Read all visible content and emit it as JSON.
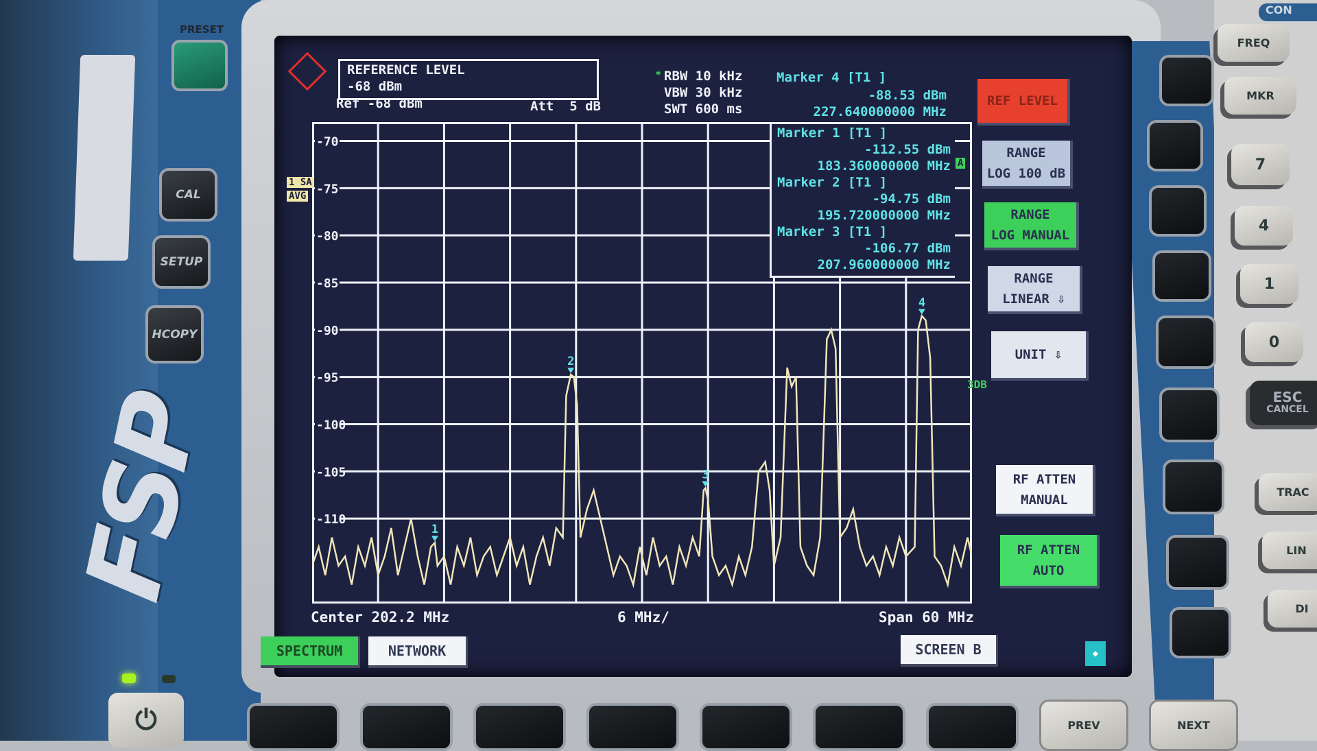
{
  "device": {
    "model_logo": "FSP",
    "preset_label": "PRESET",
    "left_keys": [
      "CAL",
      "SETUP",
      "HCOPY"
    ],
    "right_keys": [
      "FREQ",
      "MKR",
      "7",
      "4",
      "1",
      "0",
      "ESC",
      "CANCEL",
      "TRAC",
      "LIN",
      "DI"
    ],
    "right_section_label": "CON",
    "bottom_keys": [
      "PREV",
      "NEXT"
    ],
    "power_icon": "power-icon",
    "led_color": "#a8f020"
  },
  "header": {
    "entry_title": "REFERENCE LEVEL",
    "entry_value": "-68 dBm",
    "ref": "Ref -68 dBm",
    "att": "Att  5 dB",
    "rbw": "RBW 10 kHz",
    "vbw": "VBW 30 kHz",
    "swt": "SWT 600 ms",
    "rbw_flag": "*"
  },
  "markers": [
    {
      "title": "Marker 4 [T1 ]",
      "level": "-88.53 dBm",
      "freq": "227.640000000 MHz"
    },
    {
      "title": "Marker 1 [T1 ]",
      "level": "-112.55 dBm",
      "freq": "183.360000000 MHz"
    },
    {
      "title": "Marker 2 [T1 ]",
      "level": "-94.75 dBm",
      "freq": "195.720000000 MHz"
    },
    {
      "title": "Marker 3 [T1 ]",
      "level": "-106.77 dBm",
      "freq": "207.960000000 MHz"
    }
  ],
  "badges": {
    "trace": "1 SA",
    "avg": "AVG",
    "a": "A",
    "db3": "3DB"
  },
  "footer": {
    "center": "Center 202.2 MHz",
    "div": "6 MHz/",
    "span": "Span 60 MHz"
  },
  "softkeys": [
    {
      "line1": "REF LEVEL",
      "line2": "",
      "state": "active-red"
    },
    {
      "line1": "RANGE",
      "line2": "LOG 100 dB",
      "state": "normal"
    },
    {
      "line1": "RANGE",
      "line2": "LOG MANUAL",
      "state": "selected"
    },
    {
      "line1": "RANGE",
      "line2": "LINEAR ⇩",
      "state": "normal"
    },
    {
      "line1": "UNIT ⇩",
      "line2": "",
      "state": "normal"
    },
    {
      "line1": "RF ATTEN",
      "line2": "MANUAL",
      "state": "normal"
    },
    {
      "line1": "RF ATTEN",
      "line2": "AUTO",
      "state": "selected"
    }
  ],
  "tabs": {
    "spectrum": "SPECTRUM",
    "network": "NETWORK",
    "screen_b": "SCREEN B"
  },
  "colors": {
    "screen_bg": "#1d2140",
    "trace": "#f0e6b8",
    "grid": "#eef2f8",
    "marker_text": "#5fe3e6",
    "selected": "#3ccf5a",
    "ref_key": "#e8402e"
  },
  "chart_data": {
    "type": "line",
    "xlabel": "",
    "ylabel": "",
    "xlim": [
      172.2,
      232.2
    ],
    "ylim": [
      -119,
      -68
    ],
    "yticks": [
      -70,
      -75,
      -80,
      -85,
      -90,
      -95,
      -100,
      -105,
      -110
    ],
    "xgrid_step_mhz": 6,
    "grid": true,
    "marker_points": [
      {
        "label": "1",
        "x": 183.36,
        "y": -112.55
      },
      {
        "label": "2",
        "x": 195.72,
        "y": -94.75
      },
      {
        "label": "3",
        "x": 207.96,
        "y": -106.77
      },
      {
        "label": "4",
        "x": 227.64,
        "y": -88.53
      }
    ],
    "trace": [
      [
        172.2,
        -115
      ],
      [
        172.8,
        -113
      ],
      [
        173.4,
        -116
      ],
      [
        174.0,
        -112
      ],
      [
        174.6,
        -115
      ],
      [
        175.2,
        -114
      ],
      [
        175.8,
        -117
      ],
      [
        176.4,
        -113
      ],
      [
        177.0,
        -115
      ],
      [
        177.6,
        -112
      ],
      [
        178.2,
        -116
      ],
      [
        178.8,
        -114
      ],
      [
        179.4,
        -111
      ],
      [
        180.0,
        -116
      ],
      [
        180.6,
        -113
      ],
      [
        181.2,
        -110
      ],
      [
        181.8,
        -114
      ],
      [
        182.4,
        -117
      ],
      [
        183.0,
        -113
      ],
      [
        183.36,
        -112.55
      ],
      [
        183.6,
        -115
      ],
      [
        184.2,
        -114
      ],
      [
        184.8,
        -117
      ],
      [
        185.4,
        -113
      ],
      [
        186.0,
        -115
      ],
      [
        186.6,
        -112
      ],
      [
        187.2,
        -116
      ],
      [
        187.8,
        -114
      ],
      [
        188.4,
        -113
      ],
      [
        189.0,
        -116
      ],
      [
        189.6,
        -114
      ],
      [
        190.2,
        -112
      ],
      [
        190.8,
        -115
      ],
      [
        191.4,
        -113
      ],
      [
        192.0,
        -117
      ],
      [
        192.6,
        -114
      ],
      [
        193.2,
        -112
      ],
      [
        193.8,
        -115
      ],
      [
        194.4,
        -111
      ],
      [
        195.0,
        -112
      ],
      [
        195.3,
        -97
      ],
      [
        195.72,
        -94.75
      ],
      [
        196.0,
        -95
      ],
      [
        196.3,
        -98
      ],
      [
        196.6,
        -112
      ],
      [
        197.2,
        -109
      ],
      [
        197.8,
        -107
      ],
      [
        198.4,
        -110
      ],
      [
        199.0,
        -113
      ],
      [
        199.6,
        -116
      ],
      [
        200.2,
        -114
      ],
      [
        200.8,
        -115
      ],
      [
        201.4,
        -117
      ],
      [
        202.0,
        -113
      ],
      [
        202.6,
        -116
      ],
      [
        203.2,
        -112
      ],
      [
        203.8,
        -115
      ],
      [
        204.4,
        -114
      ],
      [
        205.0,
        -117
      ],
      [
        205.6,
        -113
      ],
      [
        206.2,
        -115
      ],
      [
        206.8,
        -112
      ],
      [
        207.4,
        -114
      ],
      [
        207.8,
        -107
      ],
      [
        207.96,
        -106.77
      ],
      [
        208.2,
        -108
      ],
      [
        208.6,
        -114
      ],
      [
        209.2,
        -116
      ],
      [
        209.8,
        -115
      ],
      [
        210.4,
        -117
      ],
      [
        211.0,
        -114
      ],
      [
        211.6,
        -116
      ],
      [
        212.2,
        -113
      ],
      [
        212.8,
        -105
      ],
      [
        213.4,
        -104
      ],
      [
        213.8,
        -107
      ],
      [
        214.2,
        -115
      ],
      [
        214.8,
        -112
      ],
      [
        215.4,
        -94
      ],
      [
        215.8,
        -96
      ],
      [
        216.2,
        -95
      ],
      [
        216.6,
        -113
      ],
      [
        217.2,
        -115
      ],
      [
        217.8,
        -116
      ],
      [
        218.4,
        -112
      ],
      [
        219.0,
        -91
      ],
      [
        219.4,
        -90
      ],
      [
        219.8,
        -92
      ],
      [
        220.2,
        -112
      ],
      [
        220.8,
        -111
      ],
      [
        221.4,
        -109
      ],
      [
        222.0,
        -113
      ],
      [
        222.6,
        -115
      ],
      [
        223.2,
        -114
      ],
      [
        223.8,
        -116
      ],
      [
        224.4,
        -113
      ],
      [
        225.0,
        -115
      ],
      [
        225.6,
        -112
      ],
      [
        226.2,
        -114
      ],
      [
        227.0,
        -113
      ],
      [
        227.3,
        -90
      ],
      [
        227.64,
        -88.53
      ],
      [
        228.0,
        -89
      ],
      [
        228.4,
        -93
      ],
      [
        228.8,
        -114
      ],
      [
        229.4,
        -115
      ],
      [
        230.0,
        -117
      ],
      [
        230.6,
        -113
      ],
      [
        231.2,
        -115
      ],
      [
        231.8,
        -112
      ],
      [
        232.2,
        -114
      ]
    ]
  }
}
